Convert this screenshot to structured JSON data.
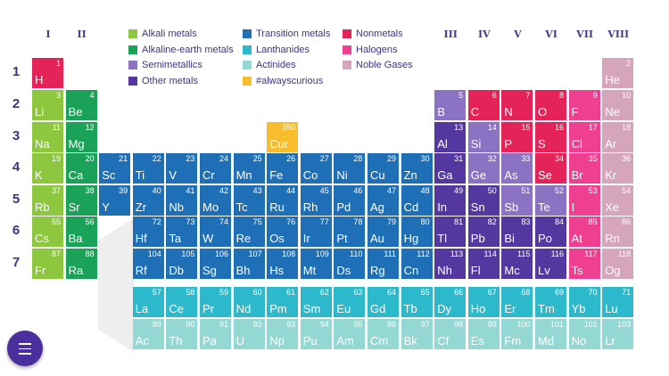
{
  "groups": [
    {
      "label": "I",
      "col": 1
    },
    {
      "label": "II",
      "col": 2
    },
    {
      "label": "III",
      "col": 13
    },
    {
      "label": "IV",
      "col": 14
    },
    {
      "label": "V",
      "col": 15
    },
    {
      "label": "VI",
      "col": 16
    },
    {
      "label": "VII",
      "col": 17
    },
    {
      "label": "VIII",
      "col": 18
    }
  ],
  "periods": [
    "1",
    "2",
    "3",
    "4",
    "5",
    "6",
    "7"
  ],
  "legend": [
    {
      "key": "alkali",
      "label": "Alkali metals",
      "color": "#8dc63f"
    },
    {
      "key": "alkaline",
      "label": "Alkaline-earth metals",
      "color": "#1aa259"
    },
    {
      "key": "semi",
      "label": "Semimetallics",
      "color": "#8c72c3"
    },
    {
      "key": "other",
      "label": "Other metals",
      "color": "#54389f"
    },
    {
      "key": "transition",
      "label": "Transition metals",
      "color": "#1f6fb6"
    },
    {
      "key": "lanthanide",
      "label": "Lanthanides",
      "color": "#2cb9cc"
    },
    {
      "key": "actinide",
      "label": "Actinides",
      "color": "#93d8d3"
    },
    {
      "key": "curious",
      "label": "#alwayscurious",
      "color": "#f7bd2d"
    },
    {
      "key": "nonmetal",
      "label": "Nonmetals",
      "color": "#e42358"
    },
    {
      "key": "halogen",
      "label": "Halogens",
      "color": "#ee3f91"
    },
    {
      "key": "noble",
      "label": "Noble Gases",
      "color": "#d5a5bb"
    }
  ],
  "elements": [
    {
      "n": "1",
      "s": "H",
      "t": "nonmetal",
      "r": 1,
      "c": 1
    },
    {
      "n": "2",
      "s": "He",
      "t": "noble",
      "r": 1,
      "c": 18
    },
    {
      "n": "3",
      "s": "Li",
      "t": "alkali",
      "r": 2,
      "c": 1
    },
    {
      "n": "4",
      "s": "Be",
      "t": "alkaline",
      "r": 2,
      "c": 2
    },
    {
      "n": "5",
      "s": "B",
      "t": "semi",
      "r": 2,
      "c": 13
    },
    {
      "n": "6",
      "s": "C",
      "t": "nonmetal",
      "r": 2,
      "c": 14
    },
    {
      "n": "7",
      "s": "N",
      "t": "nonmetal",
      "r": 2,
      "c": 15
    },
    {
      "n": "8",
      "s": "O",
      "t": "nonmetal",
      "r": 2,
      "c": 16
    },
    {
      "n": "9",
      "s": "F",
      "t": "halogen",
      "r": 2,
      "c": 17
    },
    {
      "n": "10",
      "s": "Ne",
      "t": "noble",
      "r": 2,
      "c": 18
    },
    {
      "n": "11",
      "s": "Na",
      "t": "alkali",
      "r": 3,
      "c": 1
    },
    {
      "n": "12",
      "s": "Mg",
      "t": "alkaline",
      "r": 3,
      "c": 2
    },
    {
      "n": "350",
      "s": "Cur",
      "t": "curious",
      "r": 3,
      "c": 8
    },
    {
      "n": "13",
      "s": "Al",
      "t": "other",
      "r": 3,
      "c": 13
    },
    {
      "n": "14",
      "s": "Si",
      "t": "semi",
      "r": 3,
      "c": 14
    },
    {
      "n": "15",
      "s": "P",
      "t": "nonmetal",
      "r": 3,
      "c": 15
    },
    {
      "n": "16",
      "s": "S",
      "t": "nonmetal",
      "r": 3,
      "c": 16
    },
    {
      "n": "17",
      "s": "Cl",
      "t": "halogen",
      "r": 3,
      "c": 17
    },
    {
      "n": "18",
      "s": "Ar",
      "t": "noble",
      "r": 3,
      "c": 18
    },
    {
      "n": "19",
      "s": "K",
      "t": "alkali",
      "r": 4,
      "c": 1
    },
    {
      "n": "20",
      "s": "Ca",
      "t": "alkaline",
      "r": 4,
      "c": 2
    },
    {
      "n": "21",
      "s": "Sc",
      "t": "transition",
      "r": 4,
      "c": 3
    },
    {
      "n": "22",
      "s": "Ti",
      "t": "transition",
      "r": 4,
      "c": 4
    },
    {
      "n": "23",
      "s": "V",
      "t": "transition",
      "r": 4,
      "c": 5
    },
    {
      "n": "24",
      "s": "Cr",
      "t": "transition",
      "r": 4,
      "c": 6
    },
    {
      "n": "25",
      "s": "Mn",
      "t": "transition",
      "r": 4,
      "c": 7
    },
    {
      "n": "26",
      "s": "Fe",
      "t": "transition",
      "r": 4,
      "c": 8
    },
    {
      "n": "27",
      "s": "Co",
      "t": "transition",
      "r": 4,
      "c": 9
    },
    {
      "n": "28",
      "s": "Ni",
      "t": "transition",
      "r": 4,
      "c": 10
    },
    {
      "n": "29",
      "s": "Cu",
      "t": "transition",
      "r": 4,
      "c": 11
    },
    {
      "n": "30",
      "s": "Zn",
      "t": "transition",
      "r": 4,
      "c": 12
    },
    {
      "n": "31",
      "s": "Ga",
      "t": "other",
      "r": 4,
      "c": 13
    },
    {
      "n": "32",
      "s": "Ge",
      "t": "semi",
      "r": 4,
      "c": 14
    },
    {
      "n": "33",
      "s": "As",
      "t": "semi",
      "r": 4,
      "c": 15
    },
    {
      "n": "34",
      "s": "Se",
      "t": "nonmetal",
      "r": 4,
      "c": 16
    },
    {
      "n": "35",
      "s": "Br",
      "t": "halogen",
      "r": 4,
      "c": 17
    },
    {
      "n": "36",
      "s": "Kr",
      "t": "noble",
      "r": 4,
      "c": 18
    },
    {
      "n": "37",
      "s": "Rb",
      "t": "alkali",
      "r": 5,
      "c": 1
    },
    {
      "n": "38",
      "s": "Sr",
      "t": "alkaline",
      "r": 5,
      "c": 2
    },
    {
      "n": "39",
      "s": "Y",
      "t": "transition",
      "r": 5,
      "c": 3
    },
    {
      "n": "40",
      "s": "Zr",
      "t": "transition",
      "r": 5,
      "c": 4
    },
    {
      "n": "41",
      "s": "Nb",
      "t": "transition",
      "r": 5,
      "c": 5
    },
    {
      "n": "42",
      "s": "Mo",
      "t": "transition",
      "r": 5,
      "c": 6
    },
    {
      "n": "43",
      "s": "Tc",
      "t": "transition",
      "r": 5,
      "c": 7
    },
    {
      "n": "44",
      "s": "Ru",
      "t": "transition",
      "r": 5,
      "c": 8
    },
    {
      "n": "45",
      "s": "Rh",
      "t": "transition",
      "r": 5,
      "c": 9
    },
    {
      "n": "46",
      "s": "Pd",
      "t": "transition",
      "r": 5,
      "c": 10
    },
    {
      "n": "47",
      "s": "Ag",
      "t": "transition",
      "r": 5,
      "c": 11
    },
    {
      "n": "48",
      "s": "Cd",
      "t": "transition",
      "r": 5,
      "c": 12
    },
    {
      "n": "49",
      "s": "In",
      "t": "other",
      "r": 5,
      "c": 13
    },
    {
      "n": "50",
      "s": "Sn",
      "t": "other",
      "r": 5,
      "c": 14
    },
    {
      "n": "51",
      "s": "Sb",
      "t": "semi",
      "r": 5,
      "c": 15
    },
    {
      "n": "52",
      "s": "Te",
      "t": "semi",
      "r": 5,
      "c": 16
    },
    {
      "n": "53",
      "s": "I",
      "t": "halogen",
      "r": 5,
      "c": 17
    },
    {
      "n": "54",
      "s": "Xe",
      "t": "noble",
      "r": 5,
      "c": 18
    },
    {
      "n": "55",
      "s": "Cs",
      "t": "alkali",
      "r": 6,
      "c": 1
    },
    {
      "n": "56",
      "s": "Ba",
      "t": "alkaline",
      "r": 6,
      "c": 2
    },
    {
      "n": "72",
      "s": "Hf",
      "t": "transition",
      "r": 6,
      "c": 4
    },
    {
      "n": "73",
      "s": "Ta",
      "t": "transition",
      "r": 6,
      "c": 5
    },
    {
      "n": "74",
      "s": "W",
      "t": "transition",
      "r": 6,
      "c": 6
    },
    {
      "n": "75",
      "s": "Re",
      "t": "transition",
      "r": 6,
      "c": 7
    },
    {
      "n": "76",
      "s": "Os",
      "t": "transition",
      "r": 6,
      "c": 8
    },
    {
      "n": "77",
      "s": "Ir",
      "t": "transition",
      "r": 6,
      "c": 9
    },
    {
      "n": "78",
      "s": "Pt",
      "t": "transition",
      "r": 6,
      "c": 10
    },
    {
      "n": "79",
      "s": "Au",
      "t": "transition",
      "r": 6,
      "c": 11
    },
    {
      "n": "80",
      "s": "Hg",
      "t": "transition",
      "r": 6,
      "c": 12
    },
    {
      "n": "81",
      "s": "Tl",
      "t": "other",
      "r": 6,
      "c": 13
    },
    {
      "n": "82",
      "s": "Pb",
      "t": "other",
      "r": 6,
      "c": 14
    },
    {
      "n": "83",
      "s": "Bi",
      "t": "other",
      "r": 6,
      "c": 15
    },
    {
      "n": "84",
      "s": "Po",
      "t": "other",
      "r": 6,
      "c": 16
    },
    {
      "n": "85",
      "s": "At",
      "t": "halogen",
      "r": 6,
      "c": 17
    },
    {
      "n": "86",
      "s": "Rn",
      "t": "noble",
      "r": 6,
      "c": 18
    },
    {
      "n": "87",
      "s": "Fr",
      "t": "alkali",
      "r": 7,
      "c": 1
    },
    {
      "n": "88",
      "s": "Ra",
      "t": "alkaline",
      "r": 7,
      "c": 2
    },
    {
      "n": "104",
      "s": "Rf",
      "t": "transition",
      "r": 7,
      "c": 4
    },
    {
      "n": "105",
      "s": "Db",
      "t": "transition",
      "r": 7,
      "c": 5
    },
    {
      "n": "106",
      "s": "Sg",
      "t": "transition",
      "r": 7,
      "c": 6
    },
    {
      "n": "107",
      "s": "Bh",
      "t": "transition",
      "r": 7,
      "c": 7
    },
    {
      "n": "108",
      "s": "Hs",
      "t": "transition",
      "r": 7,
      "c": 8
    },
    {
      "n": "109",
      "s": "Mt",
      "t": "transition",
      "r": 7,
      "c": 9
    },
    {
      "n": "110",
      "s": "Ds",
      "t": "transition",
      "r": 7,
      "c": 10
    },
    {
      "n": "111",
      "s": "Rg",
      "t": "transition",
      "r": 7,
      "c": 11
    },
    {
      "n": "112",
      "s": "Cn",
      "t": "transition",
      "r": 7,
      "c": 12
    },
    {
      "n": "113",
      "s": "Nh",
      "t": "other",
      "r": 7,
      "c": 13
    },
    {
      "n": "114",
      "s": "Fl",
      "t": "other",
      "r": 7,
      "c": 14
    },
    {
      "n": "115",
      "s": "Mc",
      "t": "other",
      "r": 7,
      "c": 15
    },
    {
      "n": "116",
      "s": "Lv",
      "t": "other",
      "r": 7,
      "c": 16
    },
    {
      "n": "117",
      "s": "Ts",
      "t": "halogen",
      "r": 7,
      "c": 17
    },
    {
      "n": "118",
      "s": "Og",
      "t": "noble",
      "r": 7,
      "c": 18
    },
    {
      "n": "57",
      "s": "La",
      "t": "lanthanide",
      "r": 8,
      "c": 4
    },
    {
      "n": "58",
      "s": "Ce",
      "t": "lanthanide",
      "r": 8,
      "c": 5
    },
    {
      "n": "59",
      "s": "Pr",
      "t": "lanthanide",
      "r": 8,
      "c": 6
    },
    {
      "n": "60",
      "s": "Nd",
      "t": "lanthanide",
      "r": 8,
      "c": 7
    },
    {
      "n": "61",
      "s": "Pm",
      "t": "lanthanide",
      "r": 8,
      "c": 8
    },
    {
      "n": "62",
      "s": "Sm",
      "t": "lanthanide",
      "r": 8,
      "c": 9
    },
    {
      "n": "63",
      "s": "Eu",
      "t": "lanthanide",
      "r": 8,
      "c": 10
    },
    {
      "n": "64",
      "s": "Gd",
      "t": "lanthanide",
      "r": 8,
      "c": 11
    },
    {
      "n": "65",
      "s": "Tb",
      "t": "lanthanide",
      "r": 8,
      "c": 12
    },
    {
      "n": "66",
      "s": "Dy",
      "t": "lanthanide",
      "r": 8,
      "c": 13
    },
    {
      "n": "67",
      "s": "Ho",
      "t": "lanthanide",
      "r": 8,
      "c": 14
    },
    {
      "n": "68",
      "s": "Er",
      "t": "lanthanide",
      "r": 8,
      "c": 15
    },
    {
      "n": "69",
      "s": "Tm",
      "t": "lanthanide",
      "r": 8,
      "c": 16
    },
    {
      "n": "70",
      "s": "Yb",
      "t": "lanthanide",
      "r": 8,
      "c": 17
    },
    {
      "n": "71",
      "s": "Lu",
      "t": "lanthanide",
      "r": 8,
      "c": 18
    },
    {
      "n": "89",
      "s": "Ac",
      "t": "actinide",
      "r": 9,
      "c": 4
    },
    {
      "n": "90",
      "s": "Th",
      "t": "actinide",
      "r": 9,
      "c": 5
    },
    {
      "n": "91",
      "s": "Pa",
      "t": "actinide",
      "r": 9,
      "c": 6
    },
    {
      "n": "92",
      "s": "U",
      "t": "actinide",
      "r": 9,
      "c": 7
    },
    {
      "n": "93",
      "s": "Np",
      "t": "actinide",
      "r": 9,
      "c": 8
    },
    {
      "n": "94",
      "s": "Pu",
      "t": "actinide",
      "r": 9,
      "c": 9
    },
    {
      "n": "95",
      "s": "Am",
      "t": "actinide",
      "r": 9,
      "c": 10
    },
    {
      "n": "96",
      "s": "Cm",
      "t": "actinide",
      "r": 9,
      "c": 11
    },
    {
      "n": "97",
      "s": "Bk",
      "t": "actinide",
      "r": 9,
      "c": 12
    },
    {
      "n": "98",
      "s": "Cf",
      "t": "actinide",
      "r": 9,
      "c": 13
    },
    {
      "n": "99",
      "s": "Es",
      "t": "actinide",
      "r": 9,
      "c": 14
    },
    {
      "n": "100",
      "s": "Fm",
      "t": "actinide",
      "r": 9,
      "c": 15
    },
    {
      "n": "101",
      "s": "Md",
      "t": "actinide",
      "r": 9,
      "c": 16
    },
    {
      "n": "102",
      "s": "No",
      "t": "actinide",
      "r": 9,
      "c": 17
    },
    {
      "n": "103",
      "s": "Lr",
      "t": "actinide",
      "r": 9,
      "c": 18
    }
  ],
  "menu": {
    "icon": "hamburger-menu-icon"
  }
}
